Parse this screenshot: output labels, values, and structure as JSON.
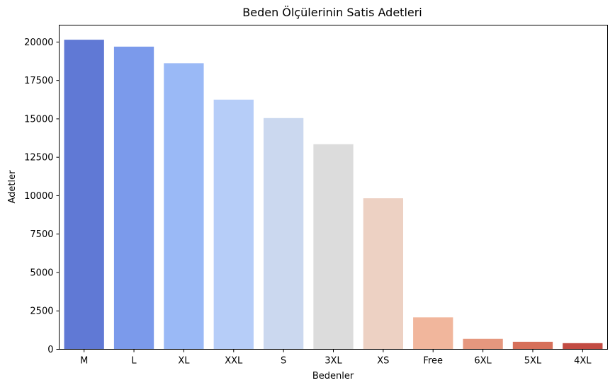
{
  "chart_data": {
    "type": "bar",
    "title": "Beden Ölçülerinin Satis Adetleri",
    "xlabel": "Bedenler",
    "ylabel": "Adetler",
    "categories": [
      "M",
      "L",
      "XL",
      "XXL",
      "S",
      "3XL",
      "XS",
      "Free",
      "6XL",
      "5XL",
      "4XL"
    ],
    "values": [
      20150,
      19700,
      18620,
      16250,
      15050,
      13350,
      9830,
      2080,
      680,
      490,
      400
    ],
    "ylim": [
      0,
      21100
    ],
    "yticks": [
      0,
      2500,
      5000,
      7500,
      10000,
      12500,
      15000,
      17500,
      20000
    ],
    "ytick_labels": [
      "0",
      "2500",
      "5000",
      "7500",
      "10000",
      "12500",
      "15000",
      "17500",
      "20000"
    ],
    "colors": [
      "#6079d5",
      "#7b9aeb",
      "#9ab9f6",
      "#b6cdf8",
      "#cbd8ef",
      "#dcdcdc",
      "#edd1c3",
      "#f1b69c",
      "#e5977e",
      "#d6705a",
      "#c24b42"
    ],
    "grid": false,
    "legend": null
  }
}
